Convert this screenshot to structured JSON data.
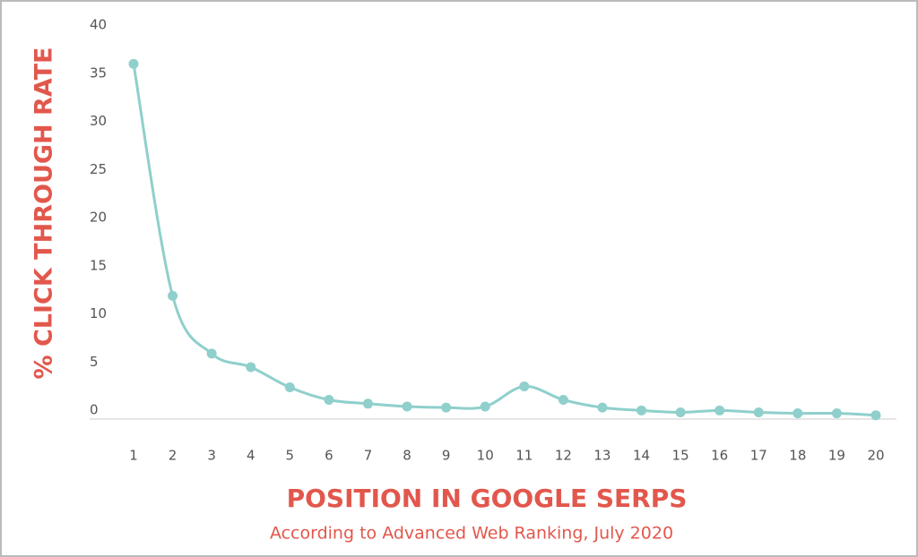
{
  "chart_data": {
    "type": "line",
    "y_label": "% CLICK THROUGH RATE",
    "x_label": "POSITION IN GOOGLE SERPS",
    "subtitle": "According to Advanced Web Ranking, July 2020",
    "categories": [
      "1",
      "2",
      "3",
      "4",
      "5",
      "6",
      "7",
      "8",
      "9",
      "10",
      "11",
      "12",
      "13",
      "14",
      "15",
      "16",
      "17",
      "18",
      "19",
      "20"
    ],
    "series": [
      {
        "color": "#8fcfcc",
        "values": [
          36.9,
          12.8,
          6.8,
          5.4,
          3.3,
          2.0,
          1.6,
          1.3,
          1.2,
          1.3,
          3.4,
          2.0,
          1.2,
          0.9,
          0.7,
          0.9,
          0.7,
          0.6,
          0.6,
          0.4
        ]
      }
    ],
    "ylim": [
      0,
      40
    ],
    "yticks": [
      0,
      5,
      10,
      15,
      20,
      25,
      30,
      35,
      40
    ],
    "grid": false
  }
}
